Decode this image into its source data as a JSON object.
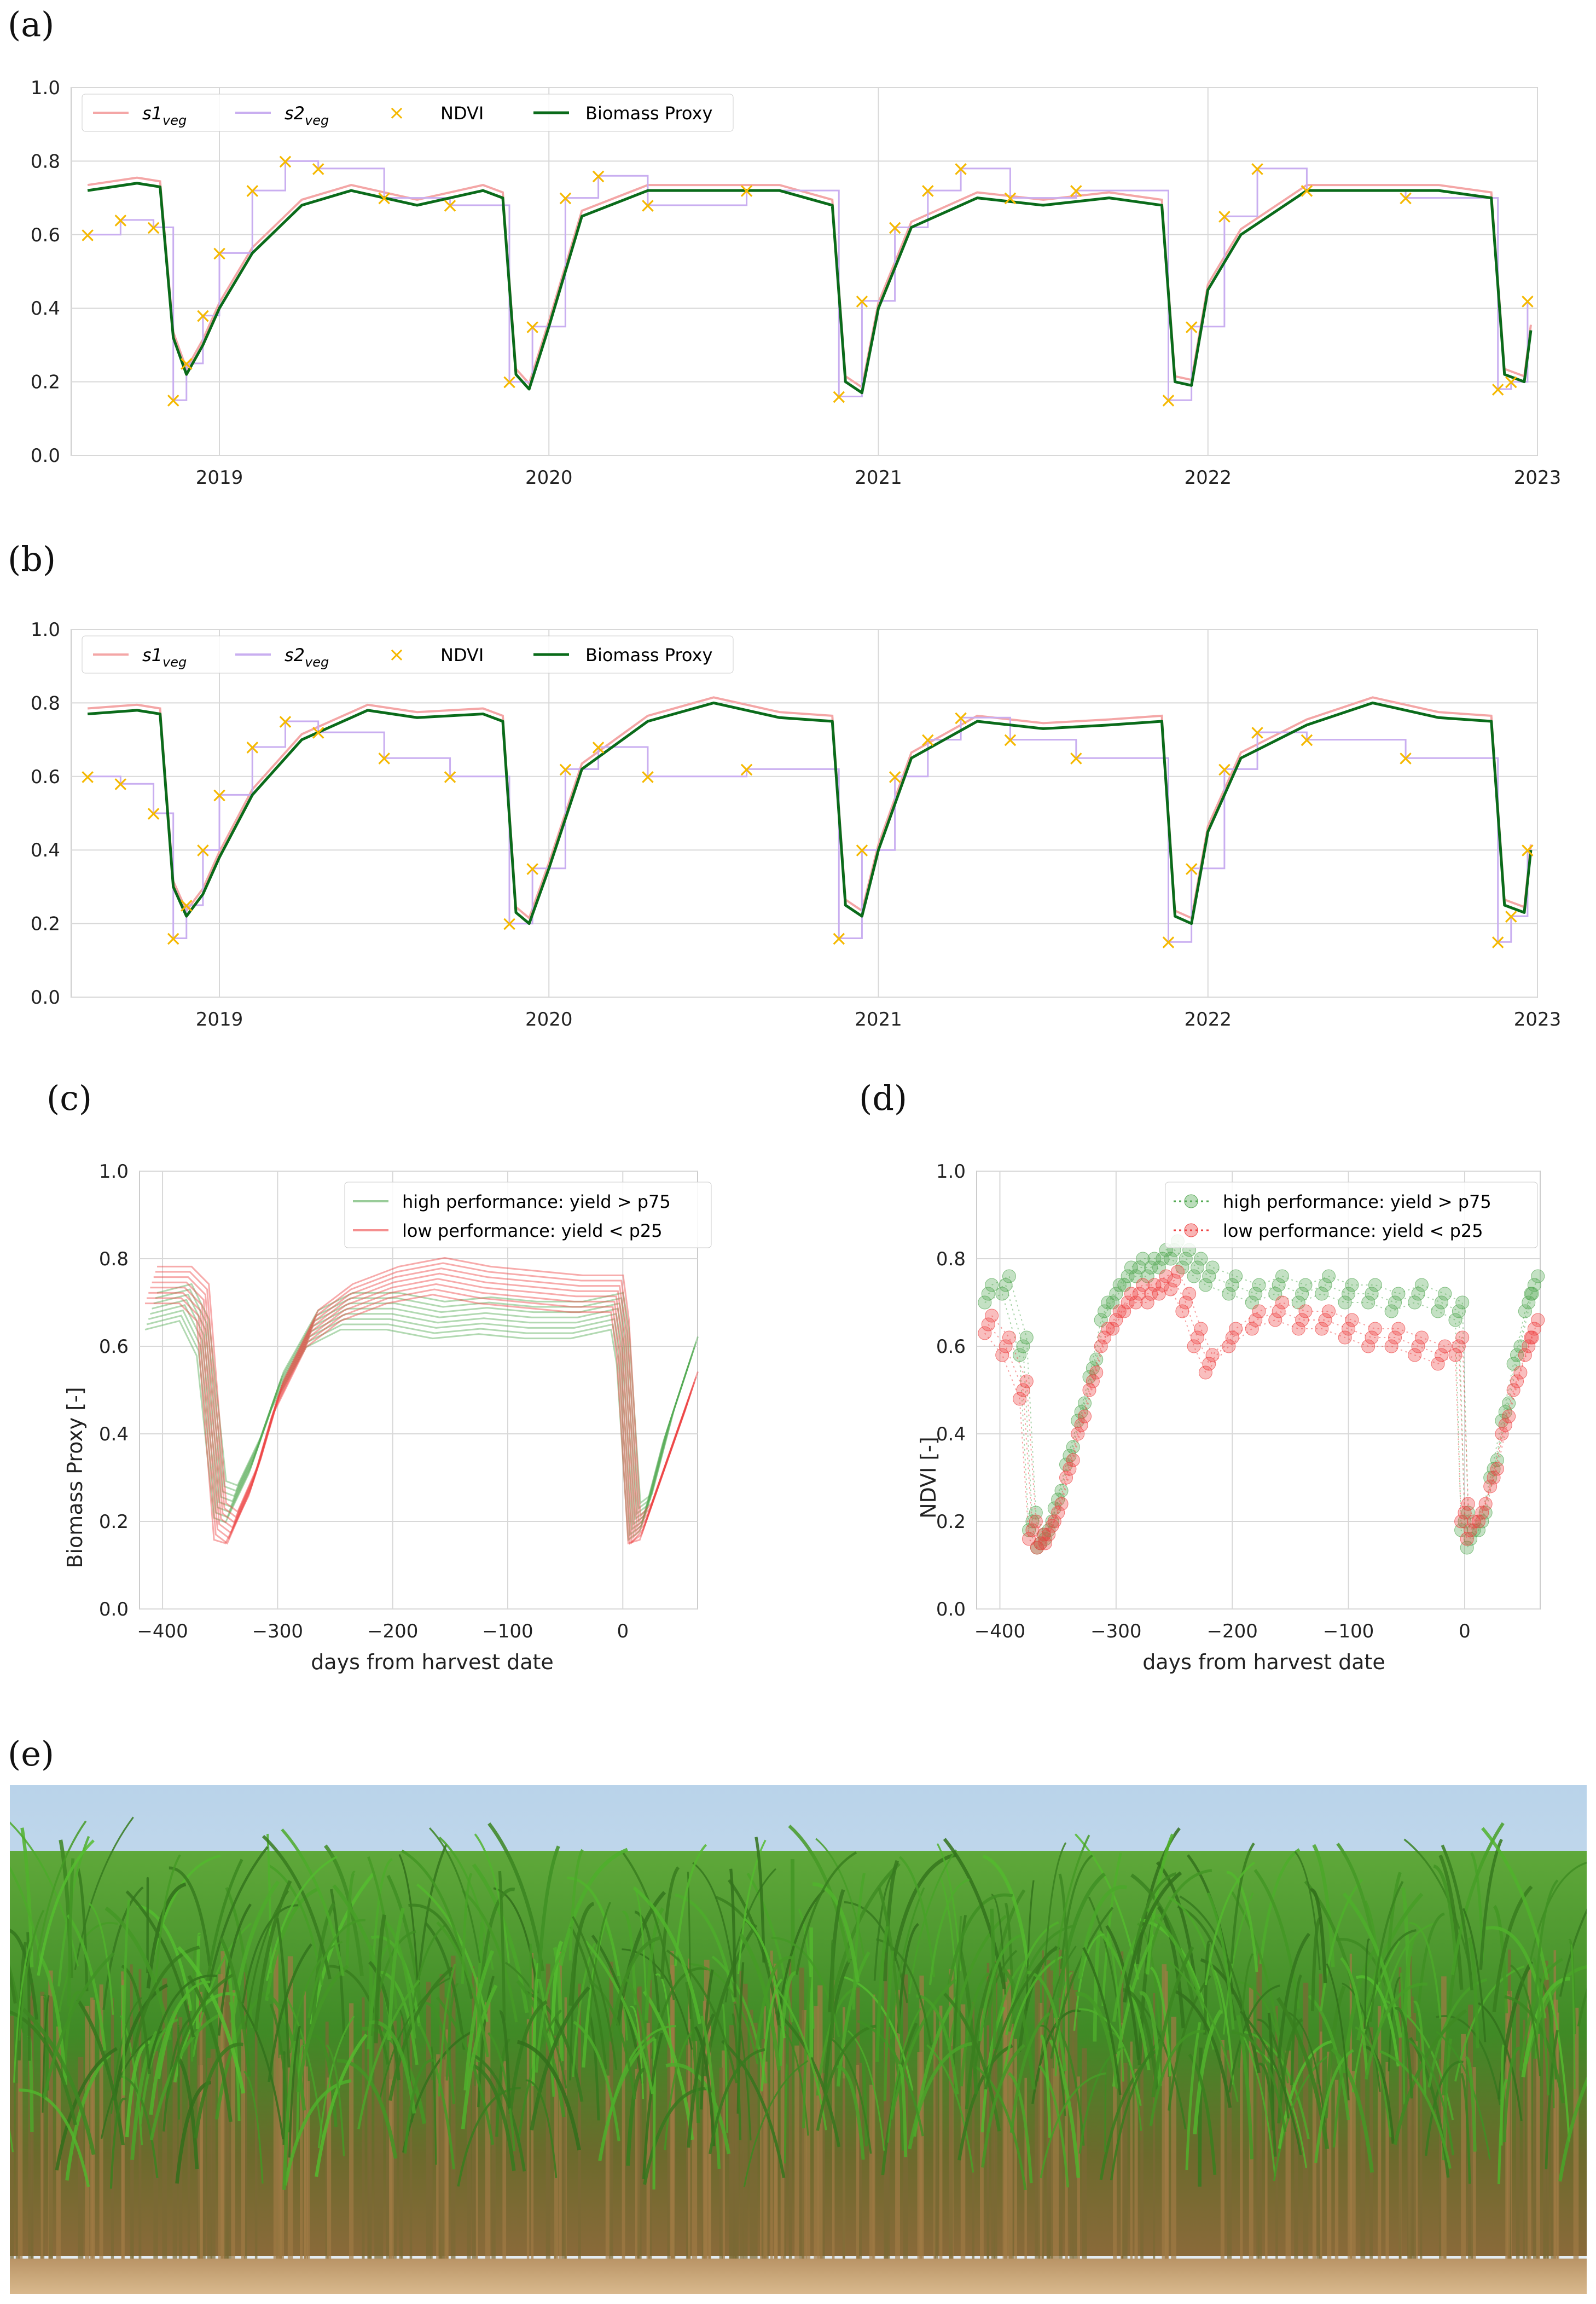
{
  "labels": {
    "a": "(a)",
    "b": "(b)",
    "c": "(c)",
    "d": "(d)",
    "e": "(e)"
  },
  "colors": {
    "s1": "#f4a6a6",
    "s2": "#c9aef0",
    "ndvi": "#f5b800",
    "biomass": "#0a6b1a",
    "high": "#55aa55",
    "low": "#ee4444",
    "grid": "#d8d8d8",
    "frame": "#cccccc"
  },
  "chart_data": [
    {
      "id": "a",
      "type": "line",
      "yticks": [
        "0.0",
        "0.2",
        "0.4",
        "0.6",
        "0.8",
        "1.0"
      ],
      "ylim": [
        0,
        1
      ],
      "xtick_labels": [
        "2019",
        "2020",
        "2021",
        "2022",
        "2023"
      ],
      "xrange_years": [
        2018.55,
        2023.0
      ],
      "legend": {
        "s1": "s1",
        "s1_sub": "veg",
        "s2": "s2",
        "s2_sub": "veg",
        "ndvi": "NDVI",
        "biomass": "Biomass Proxy"
      },
      "series": [
        {
          "name": "Biomass Proxy",
          "x": [
            2018.6,
            2018.75,
            2018.82,
            2018.86,
            2018.9,
            2018.95,
            2019.0,
            2019.1,
            2019.25,
            2019.4,
            2019.6,
            2019.8,
            2019.86,
            2019.9,
            2019.94,
            2020.0,
            2020.1,
            2020.3,
            2020.5,
            2020.7,
            2020.86,
            2020.9,
            2020.95,
            2021.0,
            2021.1,
            2021.3,
            2021.5,
            2021.7,
            2021.86,
            2021.9,
            2021.95,
            2022.0,
            2022.1,
            2022.3,
            2022.5,
            2022.7,
            2022.86,
            2022.9,
            2022.96,
            2022.98
          ],
          "values": [
            0.72,
            0.74,
            0.73,
            0.32,
            0.22,
            0.3,
            0.4,
            0.55,
            0.68,
            0.72,
            0.68,
            0.72,
            0.7,
            0.22,
            0.18,
            0.35,
            0.65,
            0.72,
            0.72,
            0.72,
            0.68,
            0.2,
            0.17,
            0.4,
            0.62,
            0.7,
            0.68,
            0.7,
            0.68,
            0.2,
            0.19,
            0.45,
            0.6,
            0.72,
            0.72,
            0.72,
            0.7,
            0.22,
            0.2,
            0.34
          ]
        },
        {
          "name": "NDVI",
          "x": [
            2018.6,
            2018.7,
            2018.8,
            2018.86,
            2018.9,
            2018.95,
            2019.0,
            2019.1,
            2019.2,
            2019.3,
            2019.5,
            2019.7,
            2019.88,
            2019.95,
            2020.05,
            2020.15,
            2020.3,
            2020.6,
            2020.88,
            2020.95,
            2021.05,
            2021.15,
            2021.25,
            2021.4,
            2021.6,
            2021.88,
            2021.95,
            2022.05,
            2022.15,
            2022.3,
            2022.6,
            2022.88,
            2022.92,
            2022.97
          ],
          "values": [
            0.6,
            0.64,
            0.62,
            0.15,
            0.25,
            0.38,
            0.55,
            0.72,
            0.8,
            0.78,
            0.7,
            0.68,
            0.2,
            0.35,
            0.7,
            0.76,
            0.68,
            0.72,
            0.16,
            0.42,
            0.62,
            0.72,
            0.78,
            0.7,
            0.72,
            0.15,
            0.35,
            0.65,
            0.78,
            0.72,
            0.7,
            0.18,
            0.2,
            0.42
          ]
        }
      ]
    },
    {
      "id": "b",
      "type": "line",
      "yticks": [
        "0.0",
        "0.2",
        "0.4",
        "0.6",
        "0.8",
        "1.0"
      ],
      "ylim": [
        0,
        1
      ],
      "xtick_labels": [
        "2019",
        "2020",
        "2021",
        "2022",
        "2023"
      ],
      "xrange_years": [
        2018.55,
        2023.0
      ],
      "legend": {
        "s1": "s1",
        "s1_sub": "veg",
        "s2": "s2",
        "s2_sub": "veg",
        "ndvi": "NDVI",
        "biomass": "Biomass Proxy"
      },
      "series": [
        {
          "name": "Biomass Proxy",
          "x": [
            2018.6,
            2018.75,
            2018.82,
            2018.86,
            2018.9,
            2018.95,
            2019.0,
            2019.1,
            2019.25,
            2019.45,
            2019.6,
            2019.8,
            2019.86,
            2019.9,
            2019.94,
            2020.0,
            2020.1,
            2020.3,
            2020.5,
            2020.7,
            2020.86,
            2020.9,
            2020.95,
            2021.0,
            2021.1,
            2021.3,
            2021.5,
            2021.7,
            2021.86,
            2021.9,
            2021.95,
            2022.0,
            2022.1,
            2022.3,
            2022.5,
            2022.7,
            2022.86,
            2022.9,
            2022.96,
            2022.98
          ],
          "values": [
            0.77,
            0.78,
            0.77,
            0.3,
            0.22,
            0.28,
            0.38,
            0.55,
            0.7,
            0.78,
            0.76,
            0.77,
            0.75,
            0.23,
            0.2,
            0.35,
            0.62,
            0.75,
            0.8,
            0.76,
            0.75,
            0.25,
            0.22,
            0.4,
            0.65,
            0.75,
            0.73,
            0.74,
            0.75,
            0.22,
            0.2,
            0.45,
            0.65,
            0.74,
            0.8,
            0.76,
            0.75,
            0.25,
            0.23,
            0.4
          ]
        },
        {
          "name": "NDVI",
          "x": [
            2018.6,
            2018.7,
            2018.8,
            2018.86,
            2018.9,
            2018.95,
            2019.0,
            2019.1,
            2019.2,
            2019.3,
            2019.5,
            2019.7,
            2019.88,
            2019.95,
            2020.05,
            2020.15,
            2020.3,
            2020.6,
            2020.88,
            2020.95,
            2021.05,
            2021.15,
            2021.25,
            2021.4,
            2021.6,
            2021.88,
            2021.95,
            2022.05,
            2022.15,
            2022.3,
            2022.6,
            2022.88,
            2022.92,
            2022.97
          ],
          "values": [
            0.6,
            0.58,
            0.5,
            0.16,
            0.25,
            0.4,
            0.55,
            0.68,
            0.75,
            0.72,
            0.65,
            0.6,
            0.2,
            0.35,
            0.62,
            0.68,
            0.6,
            0.62,
            0.16,
            0.4,
            0.6,
            0.7,
            0.76,
            0.7,
            0.65,
            0.15,
            0.35,
            0.62,
            0.72,
            0.7,
            0.65,
            0.15,
            0.22,
            0.4
          ]
        }
      ]
    },
    {
      "id": "c",
      "type": "line",
      "ylabel": "Biomass Proxy [-]",
      "xlabel": "days from harvest date",
      "yticks": [
        "0.0",
        "0.2",
        "0.4",
        "0.6",
        "0.8",
        "1.0"
      ],
      "xticks": [
        "−400",
        "−300",
        "−200",
        "−100",
        "0"
      ],
      "xlim": [
        -420,
        65
      ],
      "ylim": [
        0,
        1
      ],
      "legend": [
        "high performance: yield > p75",
        "low performance: yield < p25"
      ],
      "series": [
        {
          "name": "high performance: yield > p75",
          "x": [
            -410,
            -380,
            -365,
            -350,
            -340,
            -320,
            -300,
            -270,
            -240,
            -200,
            -160,
            -120,
            -80,
            -40,
            -5,
            0,
            10,
            20,
            40,
            60
          ],
          "values": [
            0.68,
            0.7,
            0.62,
            0.25,
            0.24,
            0.35,
            0.5,
            0.64,
            0.68,
            0.68,
            0.66,
            0.67,
            0.66,
            0.66,
            0.68,
            0.6,
            0.2,
            0.22,
            0.42,
            0.58
          ]
        },
        {
          "name": "low performance: yield < p25",
          "x": [
            -410,
            -380,
            -365,
            -350,
            -340,
            -320,
            -300,
            -270,
            -240,
            -200,
            -160,
            -120,
            -80,
            -40,
            -5,
            0,
            10,
            20,
            40,
            60
          ],
          "values": [
            0.74,
            0.74,
            0.7,
            0.2,
            0.18,
            0.3,
            0.48,
            0.64,
            0.7,
            0.74,
            0.76,
            0.74,
            0.73,
            0.72,
            0.72,
            0.62,
            0.17,
            0.2,
            0.35,
            0.5
          ]
        }
      ]
    },
    {
      "id": "d",
      "type": "scatter",
      "ylabel": "NDVI [-]",
      "xlabel": "days from harvest date",
      "yticks": [
        "0.0",
        "0.2",
        "0.4",
        "0.6",
        "0.8",
        "1.0"
      ],
      "xticks": [
        "−400",
        "−300",
        "−200",
        "−100",
        "0"
      ],
      "xlim": [
        -420,
        65
      ],
      "ylim": [
        0,
        1
      ],
      "legend": [
        "high performance: yield > p75",
        "low performance: yield < p25"
      ],
      "series": [
        {
          "name": "high performance: yield > p75",
          "x": [
            -410,
            -395,
            -380,
            -372,
            -365,
            -358,
            -350,
            -340,
            -330,
            -320,
            -310,
            -300,
            -290,
            -280,
            -270,
            -260,
            -250,
            -240,
            -230,
            -220,
            -200,
            -180,
            -160,
            -140,
            -120,
            -100,
            -80,
            -60,
            -40,
            -20,
            -5,
            0,
            5,
            15,
            25,
            35,
            45,
            55,
            60
          ],
          "values": [
            0.72,
            0.74,
            0.6,
            0.2,
            0.15,
            0.18,
            0.25,
            0.35,
            0.45,
            0.55,
            0.68,
            0.72,
            0.76,
            0.78,
            0.78,
            0.8,
            0.82,
            0.8,
            0.78,
            0.76,
            0.74,
            0.72,
            0.74,
            0.72,
            0.74,
            0.72,
            0.72,
            0.7,
            0.72,
            0.7,
            0.68,
            0.2,
            0.16,
            0.2,
            0.32,
            0.45,
            0.58,
            0.7,
            0.74
          ]
        },
        {
          "name": "low performance: yield < p25",
          "x": [
            -410,
            -395,
            -380,
            -372,
            -365,
            -358,
            -350,
            -340,
            -330,
            -320,
            -310,
            -300,
            -290,
            -280,
            -270,
            -260,
            -250,
            -240,
            -230,
            -220,
            -200,
            -180,
            -160,
            -140,
            -120,
            -100,
            -80,
            -60,
            -40,
            -20,
            -5,
            0,
            5,
            15,
            25,
            35,
            45,
            55,
            60
          ],
          "values": [
            0.65,
            0.6,
            0.5,
            0.18,
            0.15,
            0.17,
            0.22,
            0.32,
            0.42,
            0.52,
            0.62,
            0.66,
            0.7,
            0.72,
            0.72,
            0.74,
            0.75,
            0.7,
            0.62,
            0.56,
            0.62,
            0.66,
            0.68,
            0.66,
            0.66,
            0.64,
            0.62,
            0.62,
            0.6,
            0.58,
            0.6,
            0.22,
            0.18,
            0.22,
            0.3,
            0.42,
            0.52,
            0.6,
            0.64
          ]
        }
      ]
    }
  ]
}
